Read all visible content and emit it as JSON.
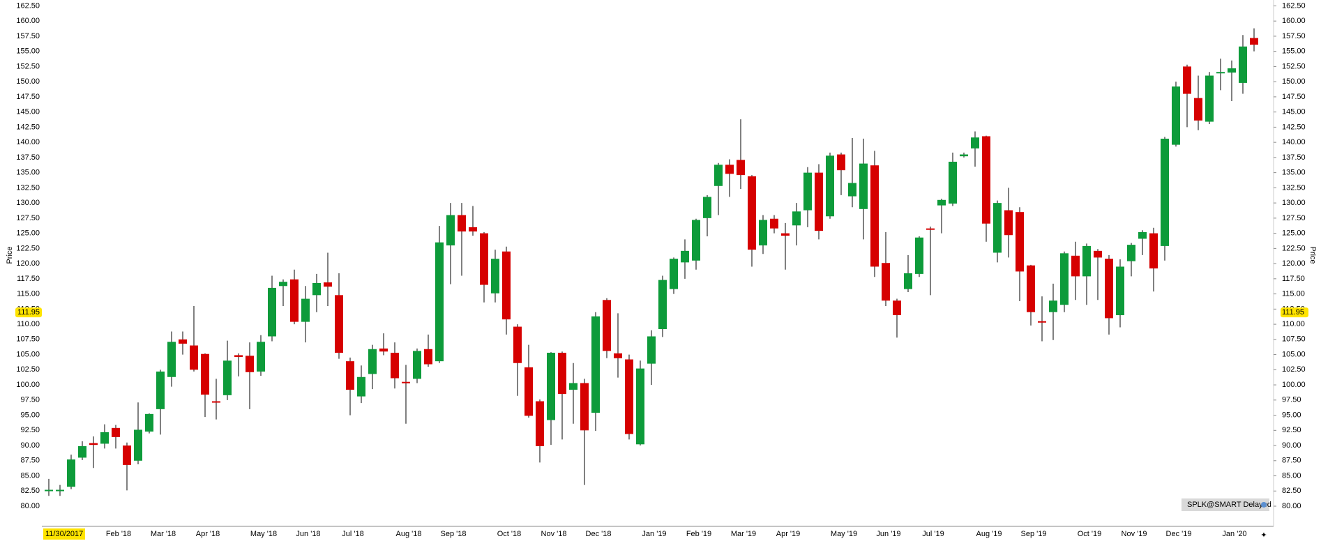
{
  "chart_data": {
    "type": "candlestick",
    "y_label": "Price",
    "up_color": "#0d9b3a",
    "down_color": "#d60000",
    "wick_color": "#000000",
    "categories": [
      "11/30/2017",
      null,
      null,
      null,
      null,
      null,
      "Feb '18",
      null,
      null,
      null,
      "Mar '18",
      null,
      null,
      null,
      "Apr '18",
      null,
      null,
      null,
      null,
      "May '18",
      null,
      null,
      null,
      "Jun '18",
      null,
      null,
      null,
      "Jul '18",
      null,
      null,
      null,
      null,
      "Aug '18",
      null,
      null,
      null,
      "Sep '18",
      null,
      null,
      null,
      null,
      "Oct '18",
      null,
      null,
      null,
      "Nov '18",
      null,
      null,
      null,
      "Dec '18",
      null,
      null,
      null,
      null,
      "Jan '19",
      null,
      null,
      null,
      "Feb '19",
      null,
      null,
      null,
      "Mar '19",
      null,
      null,
      null,
      "Apr '19",
      null,
      null,
      null,
      null,
      "May '19",
      null,
      null,
      null,
      "Jun '19",
      null,
      null,
      null,
      "Jul '19",
      null,
      null,
      null,
      null,
      "Aug '19",
      null,
      null,
      null,
      "Sep '19",
      null,
      null,
      null,
      null,
      "Oct '19",
      null,
      null,
      null,
      "Nov '19",
      null,
      null,
      null,
      "Dec '19",
      null,
      null,
      null,
      null,
      "Jan '20",
      null,
      null
    ],
    "open": [
      82.6,
      82.6,
      83.2,
      88,
      90.4,
      90.3,
      92.9,
      90,
      87.5,
      92.3,
      96,
      101.3,
      107.5,
      106.5,
      105.1,
      97.3,
      98.3,
      104.9,
      104.8,
      102.2,
      108,
      116.3,
      117.4,
      110.4,
      114.8,
      116.9,
      114.8,
      103.9,
      98.1,
      101.8,
      106,
      105.3,
      100.5,
      101,
      105.9,
      103.9,
      123,
      128,
      126,
      125,
      115.1,
      122,
      109.6,
      102.9,
      97.3,
      94.2,
      105.3,
      99.2,
      100.3,
      95.4,
      114,
      105.2,
      104.2,
      90.2,
      103.5,
      109.2,
      115.8,
      120.2,
      120.5,
      127.5,
      132.8,
      136.3,
      137.1,
      134.4,
      123,
      127.4,
      125,
      126.3,
      128.8,
      135,
      127.8,
      138,
      131.1,
      129,
      136.2,
      120.1,
      113.9,
      115.8,
      118.3,
      125.8,
      129.6,
      129.9,
      137.7,
      139,
      141,
      121.8,
      128.8,
      128.5,
      119.7,
      110.5,
      112,
      113.2,
      121.3,
      117.9,
      122.1,
      120.8,
      111.5,
      120.4,
      124.1,
      125,
      122.9,
      139.6,
      152.5,
      147.3,
      143.4,
      151.5,
      151.5,
      149.8,
      157.2
    ],
    "high": [
      84.5,
      83.5,
      88.5,
      90.7,
      91.5,
      93.5,
      93.4,
      90.5,
      97.1,
      95.3,
      102.5,
      108.8,
      108.8,
      113,
      105.2,
      101,
      107.3,
      105.2,
      107,
      108.2,
      118,
      117.4,
      119,
      116.3,
      118.3,
      121.8,
      118.4,
      104.5,
      103.2,
      106.6,
      108.5,
      107,
      103.3,
      106,
      108.3,
      126.2,
      130,
      130,
      129.5,
      125.2,
      122.3,
      122.8,
      110,
      106.6,
      97.6,
      105.4,
      105.5,
      103.6,
      101,
      112,
      114.3,
      111.8,
      105,
      104,
      109,
      118,
      121,
      124,
      127.4,
      131.3,
      136.6,
      137.2,
      143.8,
      134.6,
      128,
      128,
      126.7,
      130,
      135.9,
      136.4,
      138.3,
      138.3,
      140.7,
      140.6,
      138.6,
      125.2,
      114.2,
      121.4,
      124.5,
      126.1,
      130.7,
      138.3,
      138.3,
      141.8,
      141.1,
      130.4,
      132.5,
      129.3,
      119.8,
      114.6,
      116.7,
      122,
      123.6,
      123.3,
      122.4,
      121.4,
      120.7,
      123.4,
      125.5,
      125.9,
      140.9,
      150,
      152.8,
      151,
      151.6,
      153.8,
      153.5,
      157.7,
      158.8
    ],
    "low": [
      81.7,
      81.7,
      82.8,
      87.6,
      86.3,
      89.5,
      89.5,
      82.6,
      86.9,
      92,
      91.8,
      99.7,
      105,
      102.2,
      94.7,
      94.3,
      97.5,
      101.4,
      96,
      101.5,
      107.2,
      113,
      110,
      107,
      112,
      113,
      104.3,
      95,
      97,
      99.3,
      104.9,
      99.4,
      93.6,
      100.3,
      103,
      103.6,
      116.6,
      118,
      124.6,
      113.6,
      113.6,
      108.3,
      98.2,
      94.6,
      87.2,
      90.1,
      91,
      93.6,
      83.5,
      92.4,
      104.4,
      101.2,
      91,
      90,
      100,
      107.9,
      115,
      117.5,
      119,
      124.5,
      128,
      131,
      132.3,
      119.5,
      121.6,
      125,
      119,
      123,
      126,
      124,
      127.4,
      131.3,
      129.3,
      124,
      117.8,
      113,
      107.8,
      115.3,
      117.8,
      114.8,
      125,
      129.5,
      137.5,
      136,
      123.6,
      120.2,
      121,
      113.8,
      109.8,
      107.2,
      107.4,
      112,
      114,
      113.2,
      114,
      108.3,
      109.5,
      117.9,
      121.4,
      115.4,
      120.5,
      139.3,
      142.5,
      142,
      143,
      148.6,
      146.8,
      148,
      155
    ],
    "close": [
      82.7,
      82.7,
      87.7,
      89.9,
      90.1,
      92.2,
      91.4,
      86.8,
      92.6,
      95.2,
      102.2,
      107.1,
      106.8,
      102.5,
      98.4,
      97.2,
      104,
      104.6,
      102.1,
      107.1,
      116,
      117,
      110.4,
      114.2,
      116.8,
      116.2,
      105.3,
      99.2,
      101.3,
      105.9,
      105.5,
      101.1,
      100.3,
      105.6,
      103.4,
      123.5,
      128,
      125.3,
      125.3,
      116.5,
      120.8,
      110.8,
      103.6,
      94.9,
      89.9,
      105.3,
      98.5,
      100.3,
      92.5,
      111.3,
      105.6,
      104.4,
      91.9,
      102.7,
      108,
      117.3,
      120.8,
      122.1,
      127.2,
      131,
      136.3,
      134.8,
      134.6,
      122.3,
      127.2,
      125.8,
      124.6,
      128.6,
      135,
      125.4,
      137.8,
      135.4,
      133.3,
      136.5,
      119.5,
      113.9,
      111.5,
      118.4,
      124.3,
      125.7,
      130.5,
      136.8,
      138,
      140.8,
      126.6,
      130,
      124.7,
      118.7,
      112,
      110.4,
      113.9,
      121.7,
      117.9,
      122.9,
      121,
      111,
      119.5,
      123.1,
      125.2,
      119.2,
      140.6,
      149.2,
      148,
      143.6,
      151,
      151.6,
      152.2,
      155.8,
      156.1
    ],
    "ylim": [
      76.67,
      163.47
    ],
    "yticks": [
      {
        "value": 80,
        "label": "80.00"
      },
      {
        "value": 82.5,
        "label": "82.50"
      },
      {
        "value": 85,
        "label": "85.00"
      },
      {
        "value": 87.5,
        "label": "87.50"
      },
      {
        "value": 90,
        "label": "90.00"
      },
      {
        "value": 92.5,
        "label": "92.50"
      },
      {
        "value": 95,
        "label": "95.00"
      },
      {
        "value": 97.5,
        "label": "97.50"
      },
      {
        "value": 100,
        "label": "100.00"
      },
      {
        "value": 102.5,
        "label": "102.50"
      },
      {
        "value": 105,
        "label": "105.00"
      },
      {
        "value": 107.5,
        "label": "107.50"
      },
      {
        "value": 110,
        "label": "110.00"
      },
      {
        "value": 112.5,
        "label": "112.50"
      },
      {
        "value": 115,
        "label": "115.00"
      },
      {
        "value": 117.5,
        "label": "117.50"
      },
      {
        "value": 120,
        "label": "120.00"
      },
      {
        "value": 122.5,
        "label": "122.50"
      },
      {
        "value": 125,
        "label": "125.00"
      },
      {
        "value": 127.5,
        "label": "127.50"
      },
      {
        "value": 130,
        "label": "130.00"
      },
      {
        "value": 132.5,
        "label": "132.50"
      },
      {
        "value": 135,
        "label": "135.00"
      },
      {
        "value": 137.5,
        "label": "137.50"
      },
      {
        "value": 140,
        "label": "140.00"
      },
      {
        "value": 142.5,
        "label": "142.50"
      },
      {
        "value": 145,
        "label": "145.00"
      },
      {
        "value": 147.5,
        "label": "147.50"
      },
      {
        "value": 150,
        "label": "150.00"
      },
      {
        "value": 152.5,
        "label": "152.50"
      },
      {
        "value": 155,
        "label": "155.00"
      },
      {
        "value": 157.5,
        "label": "157.50"
      },
      {
        "value": 160,
        "label": "160.00"
      },
      {
        "value": 162.5,
        "label": "162.50"
      }
    ],
    "price_marker": 111.95,
    "badge": "SPLK@SMART Delayed",
    "grid": false
  }
}
